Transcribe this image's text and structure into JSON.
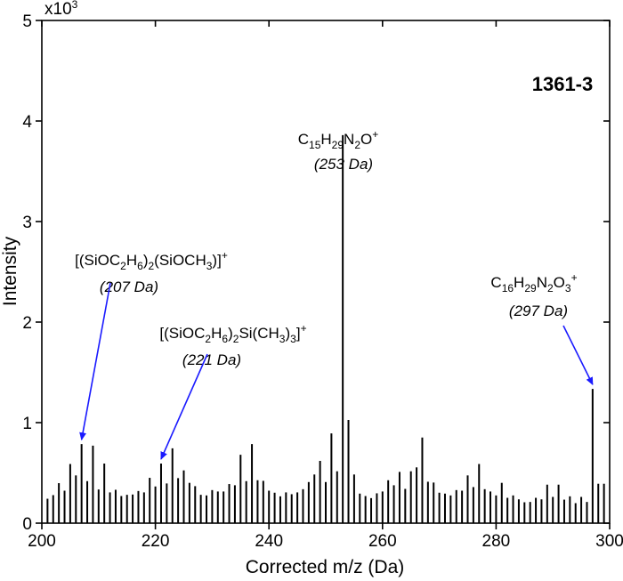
{
  "chart_data": {
    "type": "bar",
    "title": "",
    "sample_label": "1361-3",
    "xlabel": "Corrected m/z (Da)",
    "ylabel": "Intensity",
    "y_multiplier": "x10",
    "y_multiplier_exp": "3",
    "xlim": [
      200,
      300
    ],
    "ylim": [
      0,
      5000
    ],
    "x_ticks": [
      "200",
      "220",
      "240",
      "260",
      "280",
      "300"
    ],
    "x_tick_values": [
      200,
      220,
      240,
      260,
      280,
      300
    ],
    "y_ticks": [
      "0",
      "1",
      "2",
      "3",
      "4",
      "5"
    ],
    "y_tick_values": [
      0,
      1000,
      2000,
      3000,
      4000,
      5000
    ],
    "grid": false,
    "colors": {
      "bars": "#000000",
      "arrows": "#1a1aff"
    },
    "x": [
      201,
      202,
      203,
      204,
      205,
      206,
      207,
      208,
      209,
      210,
      211,
      212,
      213,
      214,
      215,
      216,
      217,
      218,
      219,
      220,
      221,
      222,
      223,
      224,
      225,
      226,
      227,
      228,
      229,
      230,
      231,
      232,
      233,
      234,
      235,
      236,
      237,
      238,
      239,
      240,
      241,
      242,
      243,
      244,
      245,
      246,
      247,
      248,
      249,
      250,
      251,
      252,
      253,
      254,
      255,
      256,
      257,
      258,
      259,
      260,
      261,
      262,
      263,
      264,
      265,
      266,
      267,
      268,
      269,
      270,
      271,
      272,
      273,
      274,
      275,
      276,
      277,
      278,
      279,
      280,
      281,
      282,
      283,
      284,
      285,
      286,
      287,
      288,
      289,
      290,
      291,
      292,
      293,
      294,
      295,
      296,
      297,
      298,
      299
    ],
    "values": [
      243,
      279,
      398,
      323,
      588,
      475,
      786,
      418,
      771,
      335,
      593,
      306,
      332,
      270,
      282,
      285,
      320,
      306,
      451,
      365,
      593,
      395,
      745,
      448,
      525,
      401,
      368,
      282,
      276,
      329,
      315,
      315,
      389,
      377,
      680,
      418,
      786,
      427,
      421,
      323,
      303,
      267,
      306,
      288,
      306,
      338,
      409,
      484,
      620,
      409,
      893,
      516,
      3860,
      1027,
      484,
      294,
      270,
      249,
      297,
      315,
      427,
      377,
      510,
      341,
      516,
      555,
      852,
      412,
      404,
      303,
      294,
      276,
      329,
      323,
      475,
      359,
      588,
      338,
      315,
      276,
      401,
      252,
      276,
      237,
      208,
      211,
      252,
      237,
      383,
      261,
      383,
      234,
      267,
      199,
      261,
      211,
      1335,
      392,
      392
    ],
    "annotations": [
      {
        "formula": [
          {
            "t": "[(SiOC"
          },
          {
            "t": "2",
            "s": "sub"
          },
          {
            "t": "H"
          },
          {
            "t": "6",
            "s": "sub"
          },
          {
            "t": ")"
          },
          {
            "t": "2",
            "s": "sub"
          },
          {
            "t": "(SiOCH"
          },
          {
            "t": "3",
            "s": "sub"
          },
          {
            "t": ")]"
          },
          {
            "t": "+",
            "s": "sup"
          }
        ],
        "mass": "(207 Da)",
        "target_x": 207,
        "arrow": true
      },
      {
        "formula": [
          {
            "t": "[(SiOC"
          },
          {
            "t": "2",
            "s": "sub"
          },
          {
            "t": "H"
          },
          {
            "t": "6",
            "s": "sub"
          },
          {
            "t": ")"
          },
          {
            "t": "2",
            "s": "sub"
          },
          {
            "t": "Si(CH"
          },
          {
            "t": "3",
            "s": "sub"
          },
          {
            "t": ")"
          },
          {
            "t": "3",
            "s": "sub"
          },
          {
            "t": "]"
          },
          {
            "t": "+",
            "s": "sup"
          }
        ],
        "mass": "(221 Da)",
        "target_x": 221,
        "arrow": true
      },
      {
        "formula": [
          {
            "t": "C"
          },
          {
            "t": "15",
            "s": "sub"
          },
          {
            "t": "H"
          },
          {
            "t": "29",
            "s": "sub"
          },
          {
            "t": "N"
          },
          {
            "t": "2",
            "s": "sub"
          },
          {
            "t": "O"
          },
          {
            "t": "+",
            "s": "sup"
          }
        ],
        "mass": "(253 Da)",
        "target_x": 253,
        "arrow": false
      },
      {
        "formula": [
          {
            "t": "C"
          },
          {
            "t": "16",
            "s": "sub"
          },
          {
            "t": "H"
          },
          {
            "t": "29",
            "s": "sub"
          },
          {
            "t": "N"
          },
          {
            "t": "2",
            "s": "sub"
          },
          {
            "t": "O"
          },
          {
            "t": "3",
            "s": "sub"
          },
          {
            "t": "+",
            "s": "sup"
          }
        ],
        "mass": "(297 Da)",
        "target_x": 297,
        "arrow": true
      }
    ]
  }
}
